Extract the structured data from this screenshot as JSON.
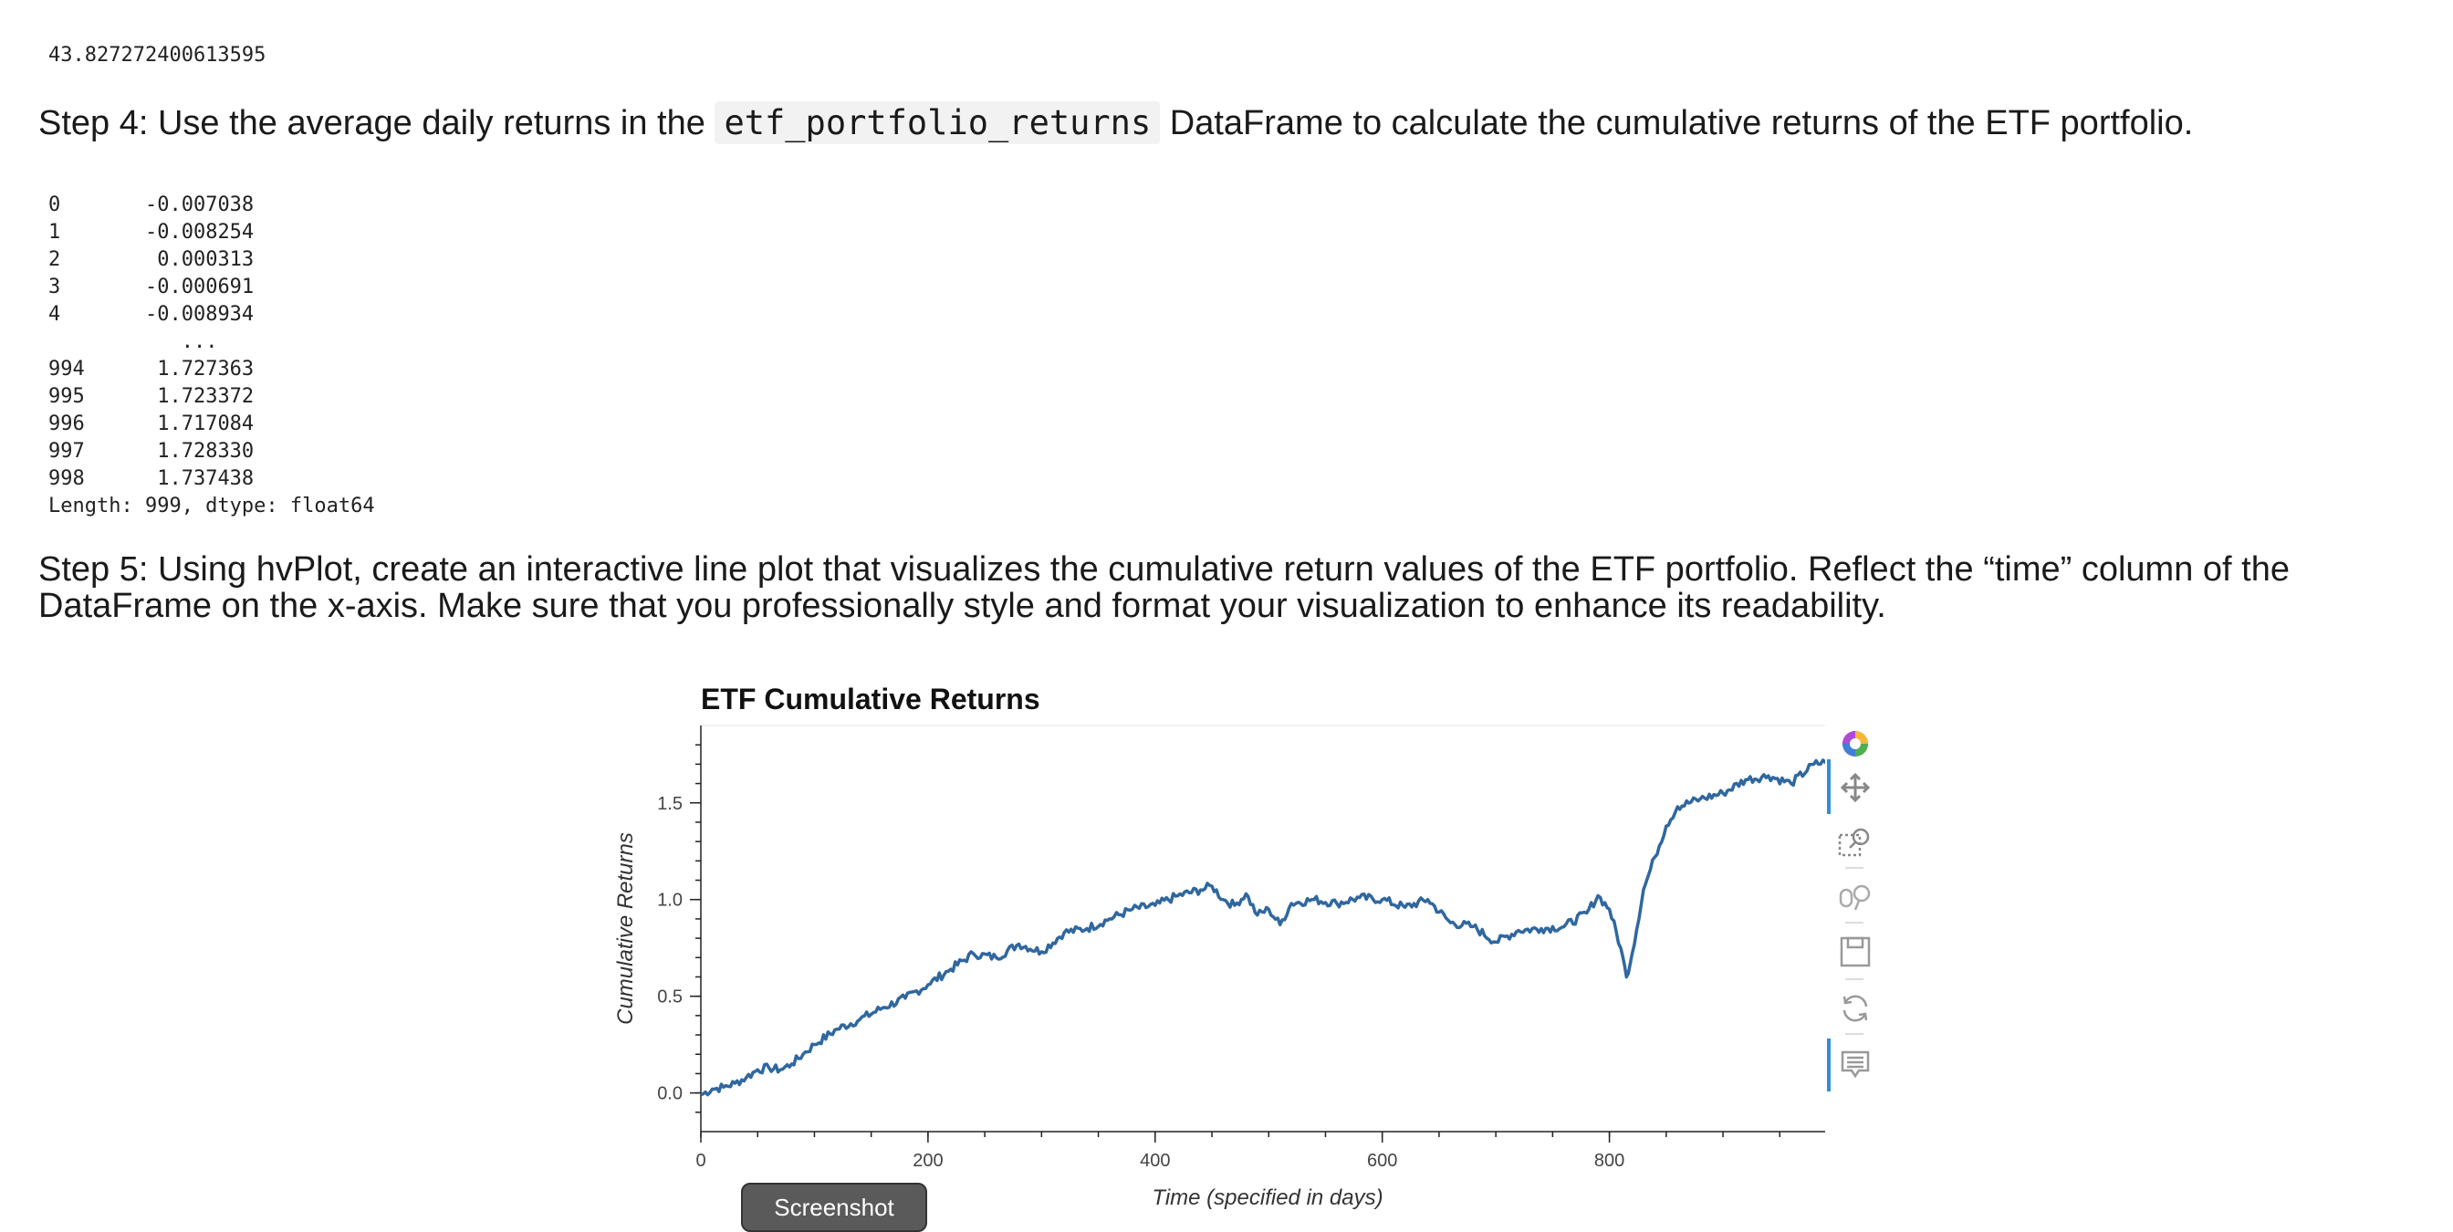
{
  "output_value": "43.827272400613595",
  "step4": {
    "prefix": "Step 4: Use the average daily returns in the ",
    "code": "etf_portfolio_returns",
    "suffix": " DataFrame to calculate the cumulative returns of the ETF portfolio."
  },
  "series_output": {
    "rows": [
      {
        "index": "0",
        "value": "-0.007038"
      },
      {
        "index": "1",
        "value": "-0.008254"
      },
      {
        "index": "2",
        "value": " 0.000313"
      },
      {
        "index": "3",
        "value": "-0.000691"
      },
      {
        "index": "4",
        "value": "-0.008934"
      },
      {
        "index": "",
        "value": "   ..."
      },
      {
        "index": "994",
        "value": " 1.727363"
      },
      {
        "index": "995",
        "value": " 1.723372"
      },
      {
        "index": "996",
        "value": " 1.717084"
      },
      {
        "index": "997",
        "value": " 1.728330"
      },
      {
        "index": "998",
        "value": " 1.737438"
      }
    ],
    "footer": "Length: 999, dtype: float64"
  },
  "step5": {
    "line1": "Step 5: Using hvPlot, create an interactive line plot that visualizes the cumulative return values of the ETF portfolio. Reflect the “time” column of the",
    "line2": "DataFrame on the x-axis. Make sure that you professionally style and format your visualization to enhance its readability."
  },
  "toolbar": {
    "icons": [
      "bokeh-logo-icon",
      "pan-icon",
      "box-zoom-icon",
      "wheel-zoom-icon",
      "save-icon",
      "reset-icon",
      "hover-icon"
    ]
  },
  "screenshot_button": "Screenshot",
  "chart_data": {
    "type": "line",
    "title": "ETF Cumulative Returns",
    "xlabel": "Time (specified in days)",
    "ylabel": "Cumulative Returns",
    "xlim": [
      0,
      998
    ],
    "ylim": [
      -0.2,
      1.9
    ],
    "xticks": [
      0,
      200,
      400,
      600,
      800
    ],
    "yticks": [
      0.0,
      0.5,
      1.0,
      1.5
    ],
    "ytick_labels": [
      "0.0",
      "0.5",
      "1.0",
      "1.5"
    ],
    "line_color": "#30679f",
    "x": [
      0,
      10,
      20,
      30,
      40,
      50,
      60,
      70,
      80,
      90,
      100,
      120,
      140,
      160,
      180,
      200,
      220,
      240,
      260,
      280,
      300,
      320,
      340,
      360,
      380,
      400,
      420,
      440,
      450,
      460,
      470,
      480,
      490,
      500,
      510,
      520,
      540,
      560,
      580,
      600,
      620,
      640,
      660,
      680,
      700,
      720,
      740,
      760,
      780,
      790,
      800,
      810,
      815,
      820,
      830,
      840,
      850,
      860,
      880,
      900,
      920,
      940,
      960,
      980,
      990,
      998
    ],
    "y": [
      -0.01,
      0.02,
      0.03,
      0.05,
      0.08,
      0.12,
      0.13,
      0.12,
      0.15,
      0.2,
      0.25,
      0.33,
      0.38,
      0.44,
      0.49,
      0.56,
      0.64,
      0.72,
      0.7,
      0.77,
      0.73,
      0.83,
      0.85,
      0.9,
      0.95,
      0.97,
      1.02,
      1.05,
      1.07,
      1.0,
      0.97,
      1.03,
      0.92,
      0.95,
      0.87,
      0.98,
      1.0,
      0.98,
      1.01,
      1.0,
      0.96,
      1.0,
      0.88,
      0.86,
      0.78,
      0.84,
      0.85,
      0.86,
      0.93,
      1.02,
      0.95,
      0.75,
      0.6,
      0.72,
      1.05,
      1.22,
      1.38,
      1.48,
      1.52,
      1.55,
      1.62,
      1.64,
      1.6,
      1.7,
      1.71,
      1.737
    ]
  }
}
